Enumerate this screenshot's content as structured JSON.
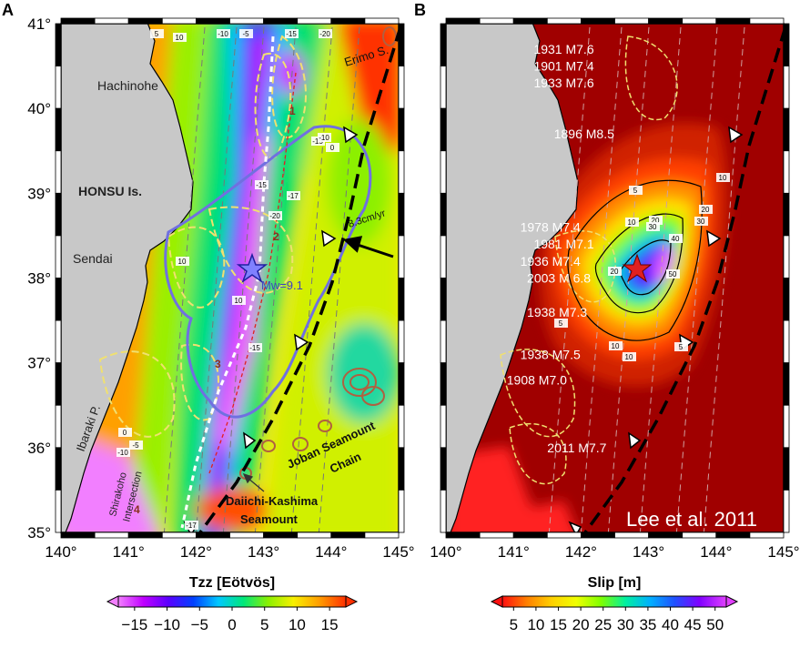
{
  "panels": [
    {
      "letter": "A",
      "place_labels": {
        "hachinohe": "Hachinohe",
        "honsu": "HONSU Is.",
        "sendai": "Sendai",
        "ibaraki": "Ibaraki P.",
        "erimo": "Erimo S.",
        "joban_1": "Joban Seamount",
        "joban_2": "Chain",
        "daiichi_1": "Daiichi-Kashima",
        "daiichi_2": "Seamount",
        "shirakoho_1": "Shirakoho",
        "shirakoho_2": "Intersection",
        "mw": "Mw=9.1",
        "rate": "8.3cm/yr"
      },
      "region_numbers": [
        "1",
        "2",
        "3",
        "4"
      ],
      "contour_labels": [
        "10",
        "10",
        "-10",
        "-5",
        "0",
        "5",
        "-15",
        "-17",
        "-20",
        "-15",
        "-10",
        "-15",
        "10",
        "-17",
        "0",
        "-5",
        "-10",
        "-15",
        "-20"
      ],
      "colorbar": {
        "title": "Tzz [Eötvös]",
        "ticks": [
          "−15",
          "−10",
          "−5",
          "0",
          "5",
          "10",
          "15"
        ],
        "colors": [
          "#f27fff",
          "#c000ff",
          "#5a00ff",
          "#0040ff",
          "#00c8ff",
          "#00e87a",
          "#8cf000",
          "#f8f000",
          "#ffa000",
          "#ff3000"
        ]
      }
    },
    {
      "letter": "B",
      "events": [
        {
          "label": "1931 M7.6",
          "lon": 141.3,
          "lat": 40.7
        },
        {
          "label": "1901 M7.4",
          "lon": 141.3,
          "lat": 40.5
        },
        {
          "label": "1933 M7.6",
          "lon": 141.3,
          "lat": 40.3
        },
        {
          "label": "1896 M8.5",
          "lon": 141.6,
          "lat": 39.7
        },
        {
          "label": "1978 M7.4",
          "lon": 141.1,
          "lat": 38.6
        },
        {
          "label": "1981 M7.1",
          "lon": 141.3,
          "lat": 38.4
        },
        {
          "label": "1936 M7.4",
          "lon": 141.1,
          "lat": 38.2
        },
        {
          "label": "2003 M 6.8",
          "lon": 141.2,
          "lat": 38.0
        },
        {
          "label": "1938 M7.3",
          "lon": 141.2,
          "lat": 37.6
        },
        {
          "label": "1938 M7.5",
          "lon": 141.1,
          "lat": 37.1
        },
        {
          "label": "1908 M7.0",
          "lon": 140.9,
          "lat": 36.8
        },
        {
          "label": "2011 M7.7",
          "lon": 141.5,
          "lat": 36.0
        }
      ],
      "slip_labels": [
        "5",
        "10",
        "20",
        "30",
        "40",
        "50",
        "20",
        "10",
        "5",
        "10",
        "5",
        "20",
        "30",
        "10"
      ],
      "credit": "Lee et al. 2011",
      "colorbar": {
        "title": "Slip [m]",
        "ticks": [
          "5",
          "10",
          "15",
          "20",
          "25",
          "30",
          "35",
          "40",
          "45",
          "50"
        ],
        "colors": [
          "#ff1010",
          "#ff8000",
          "#ffd000",
          "#f0ff00",
          "#80ff00",
          "#00f0a0",
          "#00b0ff",
          "#2050ff",
          "#8000ff",
          "#e040ff"
        ]
      }
    }
  ],
  "axes": {
    "lon_ticks": [
      "140°",
      "141°",
      "142°",
      "143°",
      "144°",
      "145°"
    ],
    "lat_ticks": [
      "41°",
      "40°",
      "39°",
      "38°",
      "37°",
      "36°",
      "35°"
    ],
    "lon_values": [
      140,
      141,
      142,
      143,
      144,
      145
    ],
    "lat_values": [
      41,
      40,
      39,
      38,
      37,
      36,
      35
    ]
  },
  "colors": {
    "land": "#c8c8c8",
    "slip_background": "#a00000",
    "trench": "#000000",
    "yellow_contour": "#f0e070",
    "blue_contour": "#7070e0"
  }
}
